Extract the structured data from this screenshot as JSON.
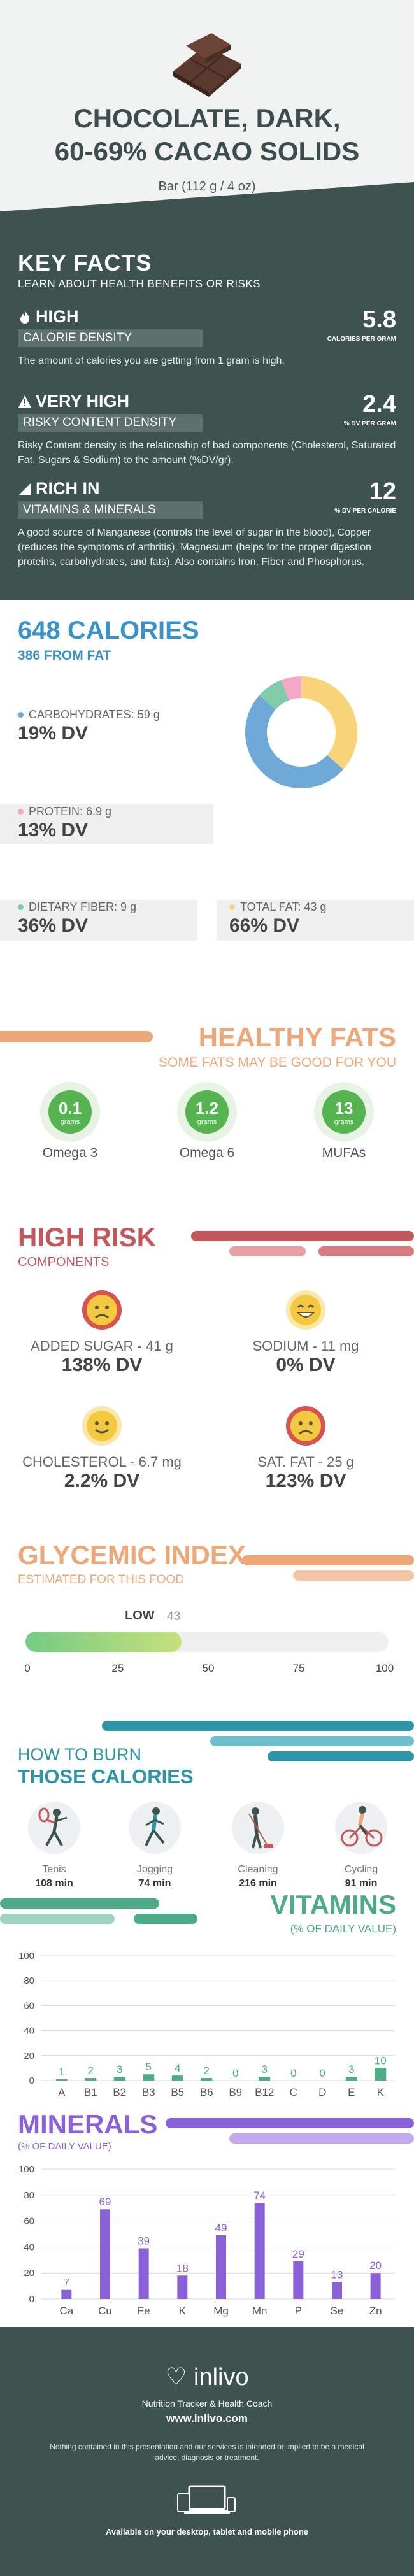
{
  "hero": {
    "title_line1": "CHOCOLATE, DARK,",
    "title_line2": "60-69% CACAO SOLIDS",
    "serving": "Bar (112 g / 4 oz)"
  },
  "key_facts": {
    "title": "KEY FACTS",
    "subtitle": "LEARN ABOUT HEALTH BENEFITS OR RISKS",
    "items": [
      {
        "level": "HIGH",
        "name": "CALORIE DENSITY",
        "value": "5.8",
        "unit": "CALORIES PER GRAM",
        "description": "The amount of calories you are getting from 1 gram is high.",
        "icon": "flame-icon"
      },
      {
        "level": "VERY HIGH",
        "name": "RISKY CONTENT DENSITY",
        "value": "2.4",
        "unit": "% DV PER GRAM",
        "description": "Risky Content density is the relationship of bad components (Cholesterol, Saturated Fat, Sugars & Sodium) to the amount (%DV/gr).",
        "icon": "warning-icon"
      },
      {
        "level": "RICH  IN",
        "name": "VITAMINS & MINERALS",
        "value": "12",
        "unit": "% DV PER CALORIE",
        "description": "A good source of Manganese (controls the level of sugar in the blood), Copper (reduces the symptoms of arthritis), Magnesium (helps for the proper digestion proteins, carbohydrates, and fats). Also contains Iron, Fiber and Phosphorus.",
        "icon": "chart-up-icon"
      }
    ]
  },
  "calories": {
    "title": "648 CALORIES",
    "from_fat": "386 FROM FAT",
    "nutrients": [
      {
        "label": "CARBOHYDRATES: 59 g",
        "dv": "19% DV",
        "color": "#6ea9d8",
        "share": 59
      },
      {
        "label": "PROTEIN: 6.9 g",
        "dv": "13% DV",
        "color": "#f4a8c8",
        "share": 6.9
      },
      {
        "label": "DIETARY FIBER: 9 g",
        "dv": "36% DV",
        "color": "#7fcbaa",
        "share": 9
      },
      {
        "label": "TOTAL FAT: 43 g",
        "dv": "66% DV",
        "color": "#f7d47a",
        "share": 43
      }
    ]
  },
  "fats": {
    "title": "HEALTHY FATS",
    "subtitle": "SOME FATS MAY BE GOOD FOR YOU",
    "unit": "grams",
    "items": [
      {
        "value": "0.1",
        "name": "Omega 3"
      },
      {
        "value": "1.2",
        "name": "Omega 6"
      },
      {
        "value": "13",
        "name": "MUFAs"
      }
    ]
  },
  "risk": {
    "title": "HIGH RISK",
    "subtitle": "COMPONENTS",
    "items": [
      {
        "label": "ADDED SUGAR - 41 g",
        "dv": "138% DV",
        "face": "sad",
        "color": "#d9534f"
      },
      {
        "label": "SODIUM - 11 mg",
        "dv": "0% DV",
        "face": "happy",
        "color": "#f5c842"
      },
      {
        "label": "CHOLESTEROL - 6.7 mg",
        "dv": "2.2% DV",
        "face": "happy",
        "color": "#f5c842"
      },
      {
        "label": "SAT. FAT - 25 g",
        "dv": "123% DV",
        "face": "sad",
        "color": "#d9534f"
      }
    ]
  },
  "glycemic": {
    "title": "GLYCEMIC INDEX",
    "subtitle": "ESTIMATED FOR THIS FOOD",
    "level": "LOW",
    "value": 43,
    "ticks": [
      "0",
      "25",
      "50",
      "75",
      "100"
    ]
  },
  "burn": {
    "line1": "HOW TO BURN",
    "line2": "THOSE CALORIES",
    "activities": [
      {
        "name": "Tenis",
        "minutes": "108 min",
        "icon": "tennis-icon"
      },
      {
        "name": "Jogging",
        "minutes": "74 min",
        "icon": "jogging-icon"
      },
      {
        "name": "Cleaning",
        "minutes": "216 min",
        "icon": "cleaning-icon"
      },
      {
        "name": "Cycling",
        "minutes": "91 min",
        "icon": "cycling-icon"
      }
    ]
  },
  "vitamins": {
    "title": "VITAMINS",
    "subtitle": "(% OF DAILY VALUE)"
  },
  "minerals": {
    "title": "MINERALS",
    "subtitle": "(% OF DAILY VALUE)"
  },
  "chart_data": [
    {
      "type": "bar",
      "title": "VITAMINS",
      "subtitle": "(% OF DAILY VALUE)",
      "categories": [
        "A",
        "B1",
        "B2",
        "B3",
        "B5",
        "B6",
        "B9",
        "B12",
        "C",
        "D",
        "E",
        "K"
      ],
      "values": [
        1,
        2,
        3,
        5,
        4,
        2,
        0,
        3,
        0,
        0,
        3,
        10
      ],
      "ylim": [
        0,
        100
      ],
      "yticks": [
        0,
        20,
        40,
        60,
        80,
        100
      ],
      "color": "#4dab86",
      "grid": true
    },
    {
      "type": "bar",
      "title": "MINERALS",
      "subtitle": "(% OF DAILY VALUE)",
      "categories": [
        "Ca",
        "Cu",
        "Fe",
        "K",
        "Mg",
        "Mn",
        "P",
        "Se",
        "Zn"
      ],
      "values": [
        7,
        69,
        39,
        18,
        49,
        74,
        29,
        13,
        20
      ],
      "ylim": [
        0,
        100
      ],
      "yticks": [
        0,
        20,
        40,
        60,
        80,
        100
      ],
      "color": "#8b61d9",
      "grid": true
    }
  ],
  "footer": {
    "brand": "inlivo",
    "tagline": "Nutrition Tracker & Health Coach",
    "url": "www.inlivo.com",
    "disclaimer": "Nothing contained in this presentation and our services is intended or implied to be a medical advice, diagnosis or treatment.",
    "availability": "Available on your desktop, tablet and mobile phone"
  }
}
